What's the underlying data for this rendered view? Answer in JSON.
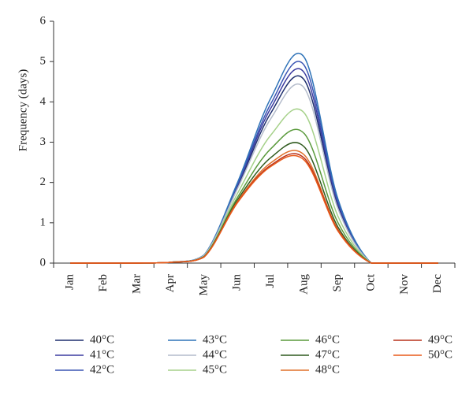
{
  "chart_data": {
    "type": "line",
    "y_label": "Frequency (days)",
    "categories": [
      "Jan",
      "Feb",
      "Mar",
      "Apr",
      "May",
      "Jun",
      "Jul",
      "Aug",
      "Sep",
      "Oct",
      "Nov",
      "Dec"
    ],
    "ylim": [
      0,
      6
    ],
    "yticks": [
      0,
      1,
      2,
      3,
      4,
      5,
      6
    ],
    "series": [
      {
        "name": "40°C",
        "color": "#1f2f6e",
        "values": [
          0,
          0,
          0,
          0.02,
          0.19,
          1.89,
          3.73,
          4.54,
          1.42,
          0,
          0,
          0
        ]
      },
      {
        "name": "41°C",
        "color": "#3b3ba0",
        "values": [
          0,
          0,
          0,
          0.02,
          0.19,
          1.93,
          3.85,
          4.72,
          1.48,
          0,
          0,
          0
        ]
      },
      {
        "name": "42°C",
        "color": "#3a55b4",
        "values": [
          0,
          0,
          0,
          0.02,
          0.2,
          1.96,
          3.96,
          4.9,
          1.54,
          0,
          0,
          0
        ]
      },
      {
        "name": "43°C",
        "color": "#2f73b8",
        "values": [
          0,
          0,
          0,
          0.02,
          0.2,
          2.0,
          4.1,
          5.1,
          1.6,
          0,
          0,
          0
        ]
      },
      {
        "name": "44°C",
        "color": "#b4bccb",
        "values": [
          0,
          0,
          0,
          0.02,
          0.19,
          1.85,
          3.59,
          4.34,
          1.36,
          0,
          0,
          0
        ]
      },
      {
        "name": "45°C",
        "color": "#a6d18a",
        "values": [
          0,
          0,
          0,
          0.02,
          0.17,
          1.73,
          3.18,
          3.72,
          1.17,
          0,
          0,
          0
        ]
      },
      {
        "name": "46°C",
        "color": "#5a9a3c",
        "values": [
          0,
          0,
          0,
          0.02,
          0.16,
          1.63,
          2.84,
          3.21,
          1.01,
          0,
          0,
          0
        ]
      },
      {
        "name": "47°C",
        "color": "#2f5a1e",
        "values": [
          0,
          0,
          0,
          0.02,
          0.16,
          1.57,
          2.62,
          2.88,
          0.9,
          0,
          0,
          0
        ]
      },
      {
        "name": "48°C",
        "color": "#e0702a",
        "values": [
          0,
          0,
          0,
          0.02,
          0.15,
          1.53,
          2.49,
          2.68,
          0.84,
          0,
          0,
          0
        ]
      },
      {
        "name": "49°C",
        "color": "#b8321c",
        "values": [
          0,
          0,
          0,
          0.02,
          0.15,
          1.51,
          2.43,
          2.6,
          0.82,
          0,
          0,
          0
        ]
      },
      {
        "name": "50°C",
        "color": "#e85a1a",
        "values": [
          0,
          0,
          0,
          0.02,
          0.15,
          1.5,
          2.4,
          2.55,
          0.8,
          0,
          0,
          0
        ]
      }
    ]
  }
}
